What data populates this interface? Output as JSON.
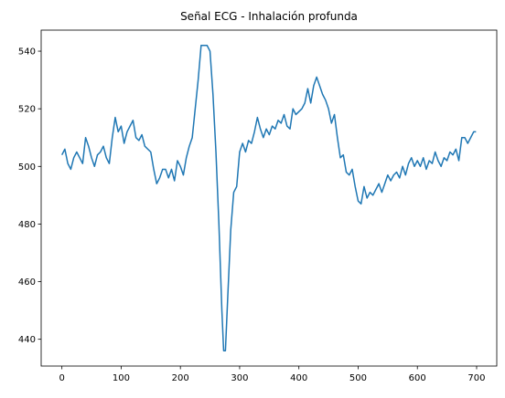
{
  "chart_data": {
    "type": "line",
    "title": "Señal ECG - Inhalación profunda",
    "x": [
      0,
      5,
      10,
      15,
      20,
      25,
      30,
      35,
      40,
      45,
      50,
      55,
      60,
      65,
      70,
      75,
      80,
      85,
      90,
      95,
      100,
      105,
      110,
      115,
      120,
      125,
      130,
      135,
      140,
      145,
      150,
      155,
      160,
      165,
      170,
      175,
      180,
      185,
      190,
      195,
      200,
      205,
      210,
      215,
      220,
      225,
      230,
      235,
      240,
      245,
      250,
      255,
      260,
      265,
      270,
      273,
      276,
      280,
      285,
      290,
      295,
      300,
      305,
      310,
      315,
      320,
      325,
      330,
      335,
      340,
      345,
      350,
      355,
      360,
      365,
      370,
      375,
      380,
      385,
      390,
      395,
      400,
      405,
      410,
      415,
      420,
      425,
      430,
      435,
      440,
      445,
      450,
      455,
      460,
      465,
      470,
      475,
      480,
      485,
      490,
      495,
      500,
      505,
      510,
      515,
      520,
      525,
      530,
      535,
      540,
      545,
      550,
      555,
      560,
      565,
      570,
      575,
      580,
      585,
      590,
      595,
      600,
      605,
      610,
      615,
      620,
      625,
      630,
      635,
      640,
      645,
      650,
      655,
      660,
      665,
      670,
      675,
      680,
      685,
      690,
      695,
      699
    ],
    "series": [
      {
        "color": "#1f77b4",
        "values": [
          504,
          506,
          501,
          499,
          503,
          505,
          503,
          501,
          510,
          507,
          503,
          500,
          504,
          505,
          507,
          503,
          501,
          510,
          517,
          512,
          514,
          508,
          512,
          514,
          516,
          510,
          509,
          511,
          507,
          506,
          505,
          499,
          494,
          496,
          499,
          499,
          496,
          499,
          495,
          502,
          500,
          497,
          503,
          507,
          510,
          520,
          530,
          542,
          542,
          542,
          540,
          525,
          505,
          480,
          450,
          436,
          436,
          455,
          478,
          491,
          493,
          505,
          508,
          505,
          509,
          508,
          512,
          517,
          513,
          510,
          513,
          511,
          514,
          513,
          516,
          515,
          518,
          514,
          513,
          520,
          518,
          519,
          520,
          522,
          527,
          522,
          528,
          531,
          528,
          525,
          523,
          520,
          515,
          518,
          510,
          503,
          504,
          498,
          497,
          499,
          493,
          488,
          487,
          493,
          489,
          491,
          490,
          492,
          494,
          491,
          494,
          497,
          495,
          497,
          498,
          496,
          500,
          497,
          501,
          503,
          500,
          502,
          500,
          503,
          499,
          502,
          501,
          505,
          502,
          500,
          503,
          502,
          505,
          504,
          506,
          502,
          510,
          510,
          508,
          510,
          512,
          512
        ]
      }
    ],
    "xlim": [
      -35,
      734
    ],
    "ylim": [
      430.7,
      547.3
    ],
    "xticks": [
      0,
      100,
      200,
      300,
      400,
      500,
      600,
      700
    ],
    "yticks": [
      440,
      460,
      480,
      500,
      520,
      540
    ]
  }
}
